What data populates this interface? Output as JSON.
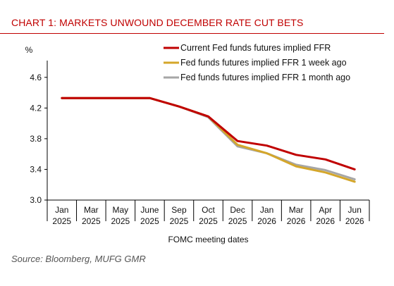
{
  "title": "CHART 1: MARKETS UNWOUND DECEMBER RATE CUT BETS",
  "source": "Source: Bloomberg, MUFG GMR",
  "colors": {
    "title": "#c00000",
    "series": [
      "#c00000",
      "#d4a62a",
      "#a6a6a6"
    ]
  },
  "chart_data": {
    "type": "line",
    "xlabel": "FOMC meeting dates",
    "ylabel": "%",
    "ylim": [
      3.0,
      4.8
    ],
    "yticks": [
      "3.0",
      "3.4",
      "3.8",
      "4.2",
      "4.6"
    ],
    "categories": [
      [
        "Jan",
        "2025"
      ],
      [
        "Mar",
        "2025"
      ],
      [
        "May",
        "2025"
      ],
      [
        "June",
        "2025"
      ],
      [
        "Sep",
        "2025"
      ],
      [
        "Oct",
        "2025"
      ],
      [
        "Dec",
        "2025"
      ],
      [
        "Jan",
        "2026"
      ],
      [
        "Mar",
        "2026"
      ],
      [
        "Apr",
        "2026"
      ],
      [
        "Jun",
        "2026"
      ]
    ],
    "grid": false,
    "legend": "top-right",
    "series": [
      {
        "name": "Fed funds futures implied FFR 1 month ago",
        "values": [
          4.33,
          4.33,
          4.33,
          4.33,
          4.22,
          4.08,
          3.7,
          3.61,
          3.46,
          3.39,
          3.27
        ]
      },
      {
        "name": "Fed funds futures implied FFR 1 week ago",
        "values": [
          4.33,
          4.33,
          4.33,
          4.33,
          4.22,
          4.09,
          3.72,
          3.61,
          3.44,
          3.36,
          3.24
        ]
      },
      {
        "name": "Current Fed funds futures implied FFR",
        "values": [
          4.33,
          4.33,
          4.33,
          4.33,
          4.22,
          4.09,
          3.77,
          3.71,
          3.59,
          3.53,
          3.4
        ]
      }
    ],
    "legend_order": [
      "Current Fed funds futures implied FFR",
      "Fed funds futures implied FFR 1 week ago",
      "Fed funds futures implied FFR 1 month ago"
    ]
  }
}
